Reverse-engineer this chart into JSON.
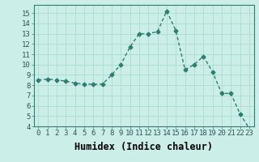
{
  "x": [
    0,
    1,
    2,
    3,
    4,
    5,
    6,
    7,
    8,
    9,
    10,
    11,
    12,
    13,
    14,
    15,
    16,
    17,
    18,
    19,
    20,
    21,
    22,
    23
  ],
  "y": [
    8.5,
    8.6,
    8.5,
    8.4,
    8.2,
    8.1,
    8.1,
    8.1,
    9.0,
    10.0,
    11.7,
    13.0,
    13.0,
    13.2,
    15.2,
    13.3,
    9.5,
    10.0,
    10.8,
    9.3,
    7.2,
    7.2,
    5.2,
    3.8
  ],
  "line_color": "#2e7d72",
  "marker": "D",
  "markersize": 2.5,
  "linewidth": 1.0,
  "bg_color": "#cceee8",
  "grid_color": "#aaddcc",
  "xlabel": "Humidex (Indice chaleur)",
  "xlim": [
    -0.5,
    23.5
  ],
  "ylim": [
    4,
    15.8
  ],
  "yticks": [
    4,
    5,
    6,
    7,
    8,
    9,
    10,
    11,
    12,
    13,
    14,
    15
  ],
  "xticks": [
    0,
    1,
    2,
    3,
    4,
    5,
    6,
    7,
    8,
    9,
    10,
    11,
    12,
    13,
    14,
    15,
    16,
    17,
    18,
    19,
    20,
    21,
    22,
    23
  ],
  "tick_fontsize": 6.5,
  "xlabel_fontsize": 8.5
}
